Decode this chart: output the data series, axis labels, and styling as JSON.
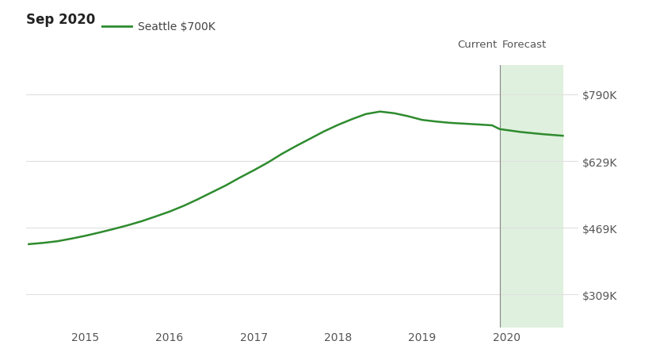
{
  "title_date": "Sep 2020",
  "legend_label": "Seattle $700K",
  "line_color": "#2e8b2e",
  "forecast_bg": "#dff0de",
  "forecast_line_x": 2019.92,
  "forecast_end_x": 2020.67,
  "current_label": "Current",
  "forecast_label": "Forecast",
  "yticks": [
    309000,
    469000,
    629000,
    790000
  ],
  "ytick_labels": [
    "$309K",
    "$469K",
    "$629K",
    "$790K"
  ],
  "ylim": [
    230000,
    860000
  ],
  "xlim_left": 2014.3,
  "xlim_right": 2020.85,
  "xticks": [
    2015,
    2016,
    2017,
    2018,
    2019,
    2020
  ],
  "x": [
    2014.33,
    2014.5,
    2014.67,
    2014.83,
    2015.0,
    2015.17,
    2015.33,
    2015.5,
    2015.67,
    2015.83,
    2016.0,
    2016.17,
    2016.33,
    2016.5,
    2016.67,
    2016.83,
    2017.0,
    2017.17,
    2017.33,
    2017.5,
    2017.67,
    2017.83,
    2018.0,
    2018.17,
    2018.33,
    2018.5,
    2018.67,
    2018.83,
    2019.0,
    2019.17,
    2019.33,
    2019.5,
    2019.67,
    2019.83,
    2019.92,
    2020.17,
    2020.42,
    2020.67
  ],
  "y": [
    430000,
    433000,
    437000,
    443000,
    450000,
    458000,
    466000,
    475000,
    485000,
    496000,
    508000,
    522000,
    537000,
    554000,
    571000,
    589000,
    607000,
    626000,
    646000,
    665000,
    683000,
    700000,
    716000,
    730000,
    742000,
    748000,
    744000,
    737000,
    728000,
    724000,
    721000,
    719000,
    717000,
    715000,
    706000,
    699000,
    694000,
    690000
  ],
  "bg_color": "#ffffff",
  "grid_color": "#e0e0e0",
  "divider_color": "#888888",
  "title_fontsize": 12,
  "legend_fontsize": 10,
  "tick_fontsize": 10,
  "label_fontsize": 9.5
}
